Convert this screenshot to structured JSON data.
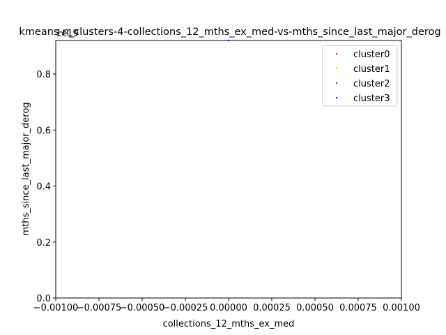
{
  "chart_data": {
    "type": "scatter",
    "title": "kmeans-n_clusters-4-collections_12_mths_ex_med-vs-mths_since_last_major_derog",
    "xlabel": "collections_12_mths_ex_med",
    "ylabel": "mths_since_last_major_derog",
    "offset_text": "1e19",
    "xlim": [
      -0.001,
      0.001
    ],
    "ylim": [
      0,
      0.92
    ],
    "x_ticks": [
      -0.001,
      -0.00075,
      -0.0005,
      -0.00025,
      0.0,
      0.00025,
      0.0005,
      0.00075,
      0.001
    ],
    "x_tick_labels": [
      "−0.00100",
      "−0.00075",
      "−0.00050",
      "−0.00025",
      "0.00000",
      "0.00025",
      "0.00050",
      "0.00075",
      "0.00100"
    ],
    "y_ticks": [
      0.0,
      0.2,
      0.4,
      0.6,
      0.8
    ],
    "y_tick_labels": [
      "0.0",
      "0.2",
      "0.4",
      "0.6",
      "0.8"
    ],
    "grid": false,
    "legend_position": "top-right",
    "series": [
      {
        "name": "cluster0",
        "color": "#ff0000",
        "points": []
      },
      {
        "name": "cluster1",
        "color": "#ffa500",
        "points": []
      },
      {
        "name": "cluster2",
        "color": "#008000",
        "points": []
      },
      {
        "name": "cluster3",
        "color": "#0000ff",
        "points": [
          {
            "x": 0.0,
            "y": 0.92
          }
        ]
      }
    ]
  }
}
